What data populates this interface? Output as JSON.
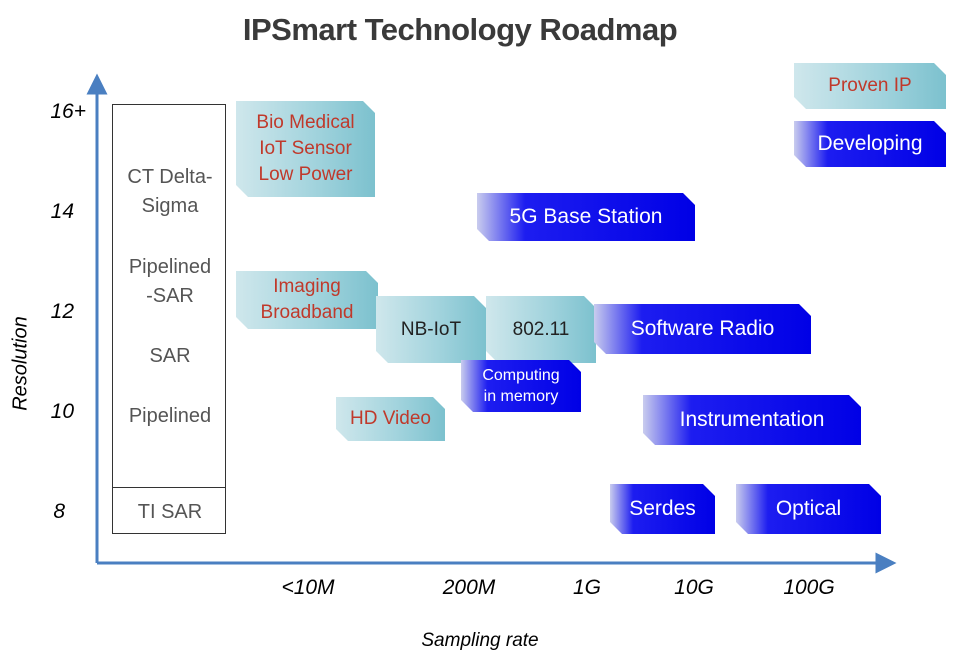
{
  "title": "IPSmart Technology Roadmap",
  "y_axis": {
    "title": "Resolution",
    "ticks": [
      "16+",
      "14",
      "12",
      "10",
      "8"
    ]
  },
  "x_axis": {
    "title": "Sampling rate",
    "ticks": [
      "<10M",
      "200M",
      "1G",
      "10G",
      "100G"
    ]
  },
  "technologies": [
    "CT Delta-\nSigma",
    "Pipelined\n-SAR",
    "SAR",
    "Pipelined",
    "TI SAR"
  ],
  "legend": {
    "proven": "Proven IP",
    "developing": "Developing"
  },
  "blocks": {
    "bio_medical": "Bio Medical\nIoT Sensor\nLow Power",
    "imaging": "Imaging\nBroadband",
    "nb_iot": "NB-IoT",
    "wifi": "802.11",
    "hd_video": "HD Video",
    "base_station": "5G Base Station",
    "software_radio": "Software Radio",
    "computing_memory": "Computing\nin memory",
    "instrumentation": "Instrumentation",
    "serdes": "Serdes",
    "optical": "Optical"
  },
  "colors": {
    "proven_text": "#c0392b",
    "proven_fill": "#9fd2dc",
    "developing_fill": "#0000e6",
    "axis": "#4a7fc1"
  }
}
